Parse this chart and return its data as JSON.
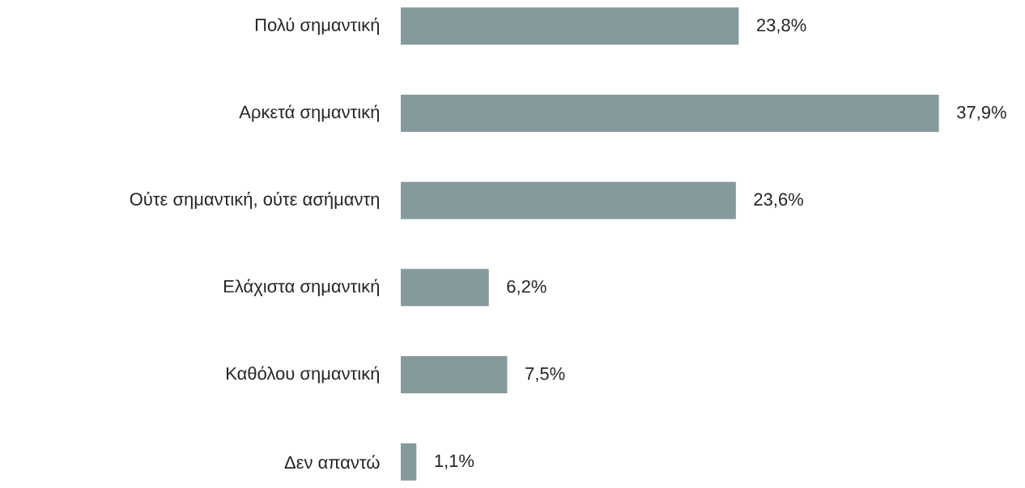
{
  "chart_data": {
    "type": "bar",
    "orientation": "horizontal",
    "categories": [
      "Πολύ σημαντική",
      "Αρκετά σημαντική",
      "Ούτε σημαντική, ούτε ασήμαντη",
      "Ελάχιστα σημαντική",
      "Καθόλου σημαντική",
      "Δεν απαντώ"
    ],
    "values": [
      23.8,
      37.9,
      23.6,
      6.2,
      7.5,
      1.1
    ],
    "value_labels": [
      "23,8%",
      "37,9%",
      "23,6%",
      "6,2%",
      "7,5%",
      "1,1%"
    ],
    "color": "#879a9b"
  }
}
